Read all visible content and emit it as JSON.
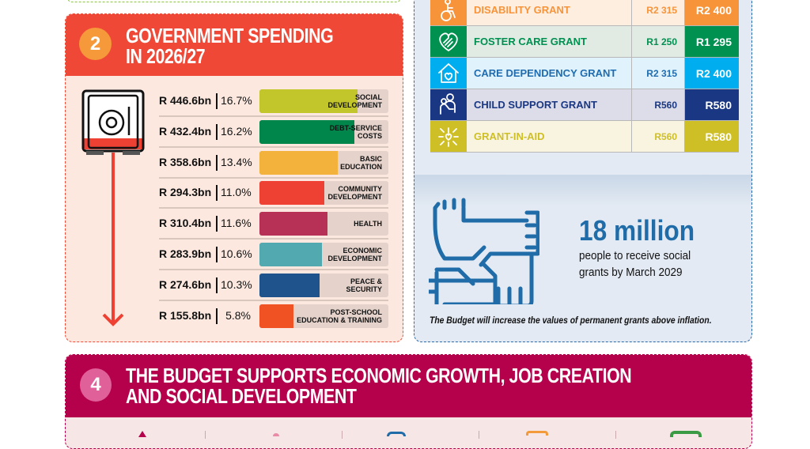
{
  "spending": {
    "number": "2",
    "title_line1": "GOVERNMENT SPENDING",
    "title_line2": "IN 2026/27",
    "scale_max_percent": 22,
    "items": [
      {
        "amount": "R 446.6bn",
        "percent_label": "16.7%",
        "percent": 16.7,
        "category": "SOCIAL\nDEVELOPMENT",
        "color": "#c2c62a"
      },
      {
        "amount": "R 432.4bn",
        "percent_label": "16.2%",
        "percent": 16.2,
        "category": "DEBT-SERVICE\nCOSTS",
        "color": "#00854a"
      },
      {
        "amount": "R 358.6bn",
        "percent_label": "13.4%",
        "percent": 13.4,
        "category": "BASIC\nEDUCATION",
        "color": "#f3b23c"
      },
      {
        "amount": "R 294.3bn",
        "percent_label": "11.0%",
        "percent": 11.0,
        "category": "COMMUNITY\nDEVELOPMENT",
        "color": "#ee4133"
      },
      {
        "amount": "R 310.4bn",
        "percent_label": "11.6%",
        "percent": 11.6,
        "category": "HEALTH",
        "color": "#b63155"
      },
      {
        "amount": "R 283.9bn",
        "percent_label": "10.6%",
        "percent": 10.6,
        "category": "ECONOMIC\nDEVELOPMENT",
        "color": "#53a9b0"
      },
      {
        "amount": "R 274.6bn",
        "percent_label": "10.3%",
        "percent": 10.3,
        "category": "PEACE &\nSECURITY",
        "color": "#1f538c"
      },
      {
        "amount": "R 155.8bn",
        "percent_label": "5.8%",
        "percent": 5.8,
        "category": "POST-SCHOOL\nEDUCATION & TRAINING",
        "color": "#f05223"
      }
    ]
  },
  "grants": {
    "rows": [
      {
        "icon": "wheelchair-icon",
        "name": "DISABILITY GRANT",
        "old": "R2 315",
        "new": "R2 400",
        "color": "#f7943a",
        "bg": "#fdeee0"
      },
      {
        "icon": "heart-hands-icon",
        "name": "FOSTER CARE GRANT",
        "old": "R1 250",
        "new": "R1 295",
        "color": "#009050",
        "bg": "#e1ebe4"
      },
      {
        "icon": "house-heart-icon",
        "name": "CARE DEPENDENCY GRANT",
        "old": "R2 315",
        "new": "R2 400",
        "color": "#00aeef",
        "text_color": "#1f6cb0",
        "bg": "#e0f2fb"
      },
      {
        "icon": "parent-child-icon",
        "name": "CHILD SUPPORT GRANT",
        "old": "R560",
        "new": "R580",
        "color": "#1a3783",
        "bg": "#dcdde9"
      },
      {
        "icon": "network-heart-icon",
        "name": "GRANT-IN-AID",
        "old": "R560",
        "new": "R580",
        "color": "#cfbf27",
        "bg": "#f8f4e0"
      }
    ],
    "highlight": "18 million",
    "highlight_text_line1": "people to receive social",
    "highlight_text_line2": "grants by March 2029",
    "note": "The Budget will increase the values of permanent grants above inflation."
  },
  "section4": {
    "number": "4",
    "title_line1": "THE BUDGET SUPPORTS ECONOMIC GROWTH, JOB CREATION",
    "title_line2": "AND SOCIAL DEVELOPMENT"
  }
}
